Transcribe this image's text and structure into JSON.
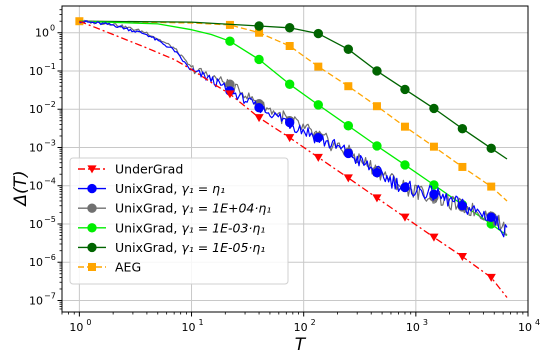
{
  "chart_data": {
    "type": "line",
    "xlabel": "T",
    "ylabel": "Δ(T)",
    "xscale": "log",
    "yscale": "log",
    "xlim": [
      0.7,
      10000
    ],
    "ylim": [
      5e-08,
      5
    ],
    "grid": true,
    "legend_position": "bottom-left",
    "x_ticks": [
      {
        "value": 1,
        "base": "10",
        "exp": "0"
      },
      {
        "value": 10,
        "base": "10",
        "exp": "1"
      },
      {
        "value": 100,
        "base": "10",
        "exp": "2"
      },
      {
        "value": 1000,
        "base": "10",
        "exp": "3"
      },
      {
        "value": 10000,
        "base": "10",
        "exp": "4"
      }
    ],
    "y_ticks": [
      {
        "value": 1,
        "base": "10",
        "exp": "0"
      },
      {
        "value": 0.1,
        "base": "10",
        "exp": "−1"
      },
      {
        "value": 0.01,
        "base": "10",
        "exp": "−2"
      },
      {
        "value": 0.001,
        "base": "10",
        "exp": "−3"
      },
      {
        "value": 0.0001,
        "base": "10",
        "exp": "−4"
      },
      {
        "value": 1e-05,
        "base": "10",
        "exp": "−5"
      },
      {
        "value": 1e-06,
        "base": "10",
        "exp": "−6"
      },
      {
        "value": 1e-07,
        "base": "10",
        "exp": "−7"
      }
    ],
    "series": [
      {
        "name": "UnderGrad",
        "legend_label": "UnderGrad",
        "color": "#ff0000",
        "dash": "dashdot",
        "marker": "triangle-down",
        "x": [
          1,
          2,
          4,
          7,
          10,
          15,
          22,
          40,
          75,
          135,
          250,
          450,
          800,
          1450,
          2600,
          4700,
          6500
        ],
        "y": [
          2.0,
          0.9,
          0.4,
          0.2,
          0.11,
          0.05,
          0.025,
          0.006,
          0.0018,
          0.00055,
          0.00016,
          4.8e-05,
          1.5e-05,
          4.5e-06,
          1.4e-06,
          4e-07,
          1.2e-07
        ],
        "markers_x": [
          22,
          40,
          75,
          135,
          250,
          450,
          800,
          1450,
          2600,
          4700
        ],
        "markers_y": [
          0.025,
          0.006,
          0.0018,
          0.00055,
          0.00016,
          4.8e-05,
          1.5e-05,
          4.5e-06,
          1.4e-06,
          4e-07
        ]
      },
      {
        "name": "UnixGrad, γ1 = η1",
        "legend_label": "UnixGrad, ",
        "legend_math": "γ₁ = η₁",
        "color": "#0000ff",
        "dash": "solid",
        "noisy": true,
        "marker": "circle",
        "x": [
          1,
          2,
          4,
          7,
          10,
          15,
          22,
          40,
          75,
          135,
          250,
          450,
          800,
          1450,
          2600,
          4700,
          6500
        ],
        "y": [
          2.0,
          1.6,
          0.9,
          0.35,
          0.1,
          0.06,
          0.03,
          0.011,
          0.0045,
          0.0018,
          0.0007,
          0.00022,
          9e-05,
          6e-05,
          3e-05,
          1.5e-05,
          6e-06
        ],
        "markers_x": [
          22,
          40,
          75,
          135,
          250,
          450,
          800,
          1450,
          2600,
          4700
        ],
        "markers_y": [
          0.03,
          0.011,
          0.0045,
          0.0018,
          0.0007,
          0.00022,
          9e-05,
          6e-05,
          3e-05,
          1.5e-05
        ]
      },
      {
        "name": "UnixGrad, γ1 = 1E+04·η1",
        "legend_label": "UnixGrad, ",
        "legend_math": "γ₁ = 1E+04·η₁",
        "color": "#707070",
        "dash": "solid",
        "noisy": true,
        "marker": "circle",
        "x": [
          1,
          2,
          4,
          7,
          10,
          15,
          22,
          40,
          75,
          135,
          250,
          450,
          800,
          1450,
          2600,
          4700,
          6500
        ],
        "y": [
          2.0,
          1.7,
          1.0,
          0.4,
          0.12,
          0.07,
          0.045,
          0.014,
          0.005,
          0.0019,
          0.00075,
          0.00025,
          9e-05,
          5e-05,
          2.8e-05,
          1.6e-05,
          7e-06
        ],
        "markers_x": [
          22,
          40,
          75,
          135,
          250,
          450,
          800,
          1450,
          2600,
          4700
        ],
        "markers_y": [
          0.045,
          0.014,
          0.005,
          0.0019,
          0.00075,
          0.00025,
          9e-05,
          5e-05,
          2.8e-05,
          1.6e-05
        ]
      },
      {
        "name": "UnixGrad, γ1 = 1E-03·η1",
        "legend_label": "UnixGrad, ",
        "legend_math": "γ₁ = 1E-03·η₁",
        "color": "#00ee00",
        "dash": "solid",
        "marker": "circle",
        "x": [
          1,
          5,
          10,
          15,
          22,
          40,
          75,
          135,
          250,
          450,
          800,
          1450,
          2600,
          4700,
          6500
        ],
        "y": [
          2.0,
          1.7,
          1.2,
          0.9,
          0.6,
          0.2,
          0.045,
          0.013,
          0.0037,
          0.0011,
          0.00035,
          0.000105,
          3.2e-05,
          1e-05,
          5e-06
        ],
        "markers_x": [
          22,
          40,
          75,
          135,
          250,
          450,
          800,
          1450,
          2600,
          4700
        ],
        "markers_y": [
          0.6,
          0.2,
          0.045,
          0.013,
          0.0037,
          0.0011,
          0.00035,
          0.000105,
          3.2e-05,
          1e-05
        ]
      },
      {
        "name": "UnixGrad, γ1 = 1E-05·η1",
        "legend_label": "UnixGrad, ",
        "legend_math": "γ₁ = 1E-05·η₁",
        "color": "#006400",
        "dash": "solid",
        "marker": "circle",
        "x": [
          1,
          10,
          40,
          75,
          135,
          250,
          450,
          800,
          1450,
          2600,
          4700,
          6500
        ],
        "y": [
          2.0,
          1.9,
          1.5,
          1.35,
          0.95,
          0.37,
          0.1,
          0.033,
          0.0105,
          0.0031,
          0.00095,
          0.0005
        ],
        "markers_x": [
          40,
          75,
          135,
          250,
          450,
          800,
          1450,
          2600,
          4700
        ],
        "markers_y": [
          1.5,
          1.35,
          0.95,
          0.37,
          0.1,
          0.033,
          0.0105,
          0.0031,
          0.00095
        ]
      },
      {
        "name": "AEG",
        "legend_label": "AEG",
        "color": "#ffa500",
        "dash": "dashed",
        "marker": "square",
        "x": [
          1,
          10,
          22,
          40,
          75,
          135,
          250,
          450,
          800,
          1450,
          2600,
          4700,
          6500
        ],
        "y": [
          2.0,
          1.8,
          1.6,
          1.0,
          0.45,
          0.13,
          0.04,
          0.012,
          0.0035,
          0.00105,
          0.00031,
          9.5e-05,
          4e-05
        ],
        "markers_x": [
          1,
          22,
          40,
          75,
          135,
          250,
          450,
          800,
          1450,
          2600,
          4700
        ],
        "markers_y": [
          2.0,
          1.6,
          1.0,
          0.45,
          0.13,
          0.04,
          0.012,
          0.0035,
          0.00105,
          0.00031,
          9.5e-05
        ]
      }
    ]
  }
}
